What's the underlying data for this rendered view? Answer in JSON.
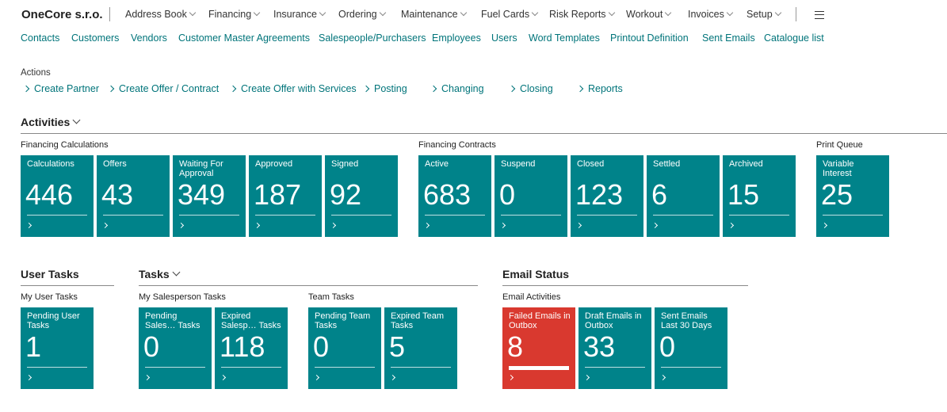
{
  "header": {
    "company": "OneCore s.r.o.",
    "menu": [
      "Address Book",
      "Financing",
      "Insurance",
      "Ordering",
      "Maintenance",
      "Fuel Cards",
      "Risk Reports",
      "Workout",
      "Invoices",
      "Setup"
    ]
  },
  "links": [
    "Contacts",
    "Customers",
    "Vendors",
    "Customer Master Agreements",
    "Salespeople/Purchasers",
    "Employees",
    "Users",
    "Word Templates",
    "Printout Definition",
    "Sent Emails",
    "Catalogue list"
  ],
  "actions": {
    "title": "Actions",
    "items": [
      "Create Partner",
      "Create Offer / Contract",
      "Create Offer with Services",
      "Posting",
      "Changing",
      "Closing",
      "Reports"
    ]
  },
  "sections": [
    {
      "title": "Activities",
      "groups": [
        {
          "title": "Financing Calculations",
          "tiles": [
            {
              "label": "Calculations",
              "value": 446,
              "color": "#00838a"
            },
            {
              "label": "Offers",
              "value": 43,
              "color": "#00838a"
            },
            {
              "label": "Waiting For Approval",
              "value": 349,
              "color": "#00838a"
            },
            {
              "label": "Approved",
              "value": 187,
              "color": "#00838a"
            },
            {
              "label": "Signed",
              "value": 92,
              "color": "#00838a"
            }
          ]
        },
        {
          "title": "Financing Contracts",
          "tiles": [
            {
              "label": "Active",
              "value": 683,
              "color": "#00838a"
            },
            {
              "label": "Suspend",
              "value": 0,
              "color": "#00838a"
            },
            {
              "label": "Closed",
              "value": 123,
              "color": "#00838a"
            },
            {
              "label": "Settled",
              "value": 6,
              "color": "#00838a"
            },
            {
              "label": "Archived",
              "value": 15,
              "color": "#00838a"
            }
          ]
        },
        {
          "title": "Print Queue",
          "tiles": [
            {
              "label": "Variable Interest",
              "value": 25,
              "color": "#00838a"
            }
          ]
        }
      ]
    },
    {
      "title": "User Tasks",
      "groups": [
        {
          "title": "My User Tasks",
          "tiles": [
            {
              "label": "Pending User Tasks",
              "value": 1,
              "color": "#00838a"
            }
          ]
        }
      ]
    },
    {
      "title": "Tasks",
      "groups": [
        {
          "title": "My Salesperson Tasks",
          "tiles": [
            {
              "label": "Pending Sales… Tasks",
              "value": 0,
              "color": "#00838a"
            },
            {
              "label": "Expired Salesp… Tasks",
              "value": 118,
              "color": "#00838a"
            }
          ]
        },
        {
          "title": "Team Tasks",
          "tiles": [
            {
              "label": "Pending Team Tasks",
              "value": 0,
              "color": "#00838a"
            },
            {
              "label": "Expired Team Tasks",
              "value": 5,
              "color": "#00838a"
            }
          ]
        }
      ]
    },
    {
      "title": "Email Status",
      "groups": [
        {
          "title": "Email Activities",
          "tiles": [
            {
              "label": "Failed Emails in Outbox",
              "value": 8,
              "color": "#d9392f"
            },
            {
              "label": "Draft Emails in Outbox",
              "value": 33,
              "color": "#00838a"
            },
            {
              "label": "Sent Emails Last 30 Days",
              "value": 0,
              "color": "#00838a"
            }
          ]
        }
      ]
    }
  ]
}
